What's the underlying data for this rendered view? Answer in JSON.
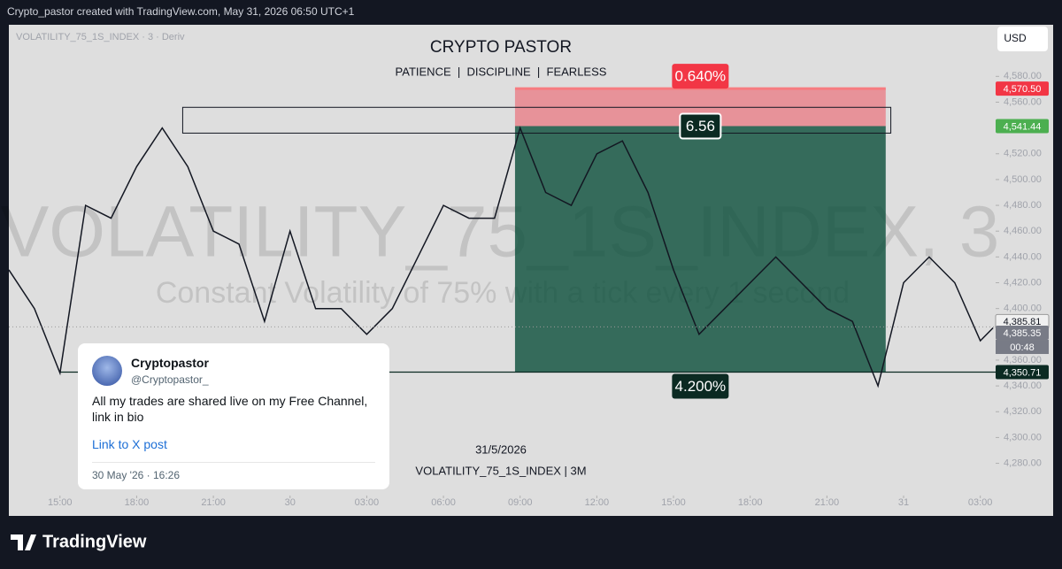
{
  "header": {
    "text": "Crypto_pastor created with TradingView.com, May 31, 2026 06:50 UTC+1"
  },
  "symbol_label": "VOLATILITY_75_1S_INDEX · 3 · Deriv",
  "currency_button": "USD",
  "watermark": {
    "title": "VOLATILITY_75_1S_INDEX, 3",
    "subtitle": "Constant Volatility of 75% with a tick every 1 second"
  },
  "chart_data": {
    "type": "line",
    "title": "CRYPTO PASTOR",
    "subtitle": "PATIENCE  |  DISCIPLINE  |  FEARLESS",
    "date_label": "31/5/2026",
    "footer_label": "VOLATILITY_75_1S_INDEX | 3M",
    "color": "#131722",
    "x": [
      -2,
      -1,
      0,
      1,
      2,
      3,
      4,
      5,
      6,
      7,
      8,
      9,
      10,
      11,
      12,
      13,
      14,
      15,
      16,
      17,
      18,
      19,
      20,
      21,
      22,
      23,
      24,
      25,
      26,
      27,
      28,
      29,
      30,
      31,
      32,
      33,
      34,
      35,
      36,
      36.5
    ],
    "values": [
      4430,
      4400,
      4350,
      4480,
      4470,
      4510,
      4540,
      4510,
      4460,
      4450,
      4390,
      4460,
      4400,
      4400,
      4380,
      4400,
      4440,
      4480,
      4470,
      4470,
      4540,
      4490,
      4480,
      4520,
      4530,
      4490,
      4430,
      4380,
      4400,
      4420,
      4440,
      4420,
      4400,
      4390,
      4340,
      4420,
      4440,
      4420,
      4375,
      4385
    ],
    "xlim": [
      -2,
      36.6
    ],
    "ylim": [
      4255,
      4620
    ],
    "xticks": [
      {
        "value": 0,
        "label": "15:00"
      },
      {
        "value": 3,
        "label": "18:00"
      },
      {
        "value": 6,
        "label": "21:00"
      },
      {
        "value": 9,
        "label": "30"
      },
      {
        "value": 12,
        "label": "03:00"
      },
      {
        "value": 15,
        "label": "06:00"
      },
      {
        "value": 18,
        "label": "09:00"
      },
      {
        "value": 21,
        "label": "12:00"
      },
      {
        "value": 24,
        "label": "15:00"
      },
      {
        "value": 27,
        "label": "18:00"
      },
      {
        "value": 30,
        "label": "21:00"
      },
      {
        "value": 33,
        "label": "31"
      },
      {
        "value": 36,
        "label": "03:00"
      }
    ],
    "yticks": [
      {
        "value": 4280,
        "label": "4,280.00"
      },
      {
        "value": 4300,
        "label": "4,300.00"
      },
      {
        "value": 4320,
        "label": "4,320.00"
      },
      {
        "value": 4340,
        "label": "4,340.00"
      },
      {
        "value": 4360,
        "label": "4,360.00"
      },
      {
        "value": 4380,
        "label": "4,380.00"
      },
      {
        "value": 4400,
        "label": "4,400.00"
      },
      {
        "value": 4420,
        "label": "4,420.00"
      },
      {
        "value": 4440,
        "label": "4,440.00"
      },
      {
        "value": 4460,
        "label": "4,460.00"
      },
      {
        "value": 4480,
        "label": "4,480.00"
      },
      {
        "value": 4500,
        "label": "4,500.00"
      },
      {
        "value": 4520,
        "label": "4,520.00"
      },
      {
        "value": 4540,
        "label": "4,540.00"
      },
      {
        "value": 4560,
        "label": "4,560.00"
      },
      {
        "value": 4580,
        "label": "4,580.00"
      }
    ],
    "position": {
      "x": [
        17.8,
        32.3
      ],
      "stop": 4570.5,
      "entry": 4541.44,
      "target": 4350.71,
      "stop_label": "0.640%",
      "ratio_label": "6.56",
      "target_label": "4.200%"
    },
    "rectangle": {
      "x": [
        4.8,
        32.5
      ],
      "y": [
        4536,
        4556
      ]
    },
    "price_labels": [
      {
        "value": 4570.5,
        "label": "4,570.50",
        "color": "#f23645"
      },
      {
        "value": 4541.44,
        "label": "4,541.44",
        "color": "#4caf50"
      },
      {
        "value": 4385.81,
        "label": "4,385.81",
        "color": "#f0f0f0"
      },
      {
        "value": 4385.35,
        "label": "4,385.35",
        "color": "#787b86"
      },
      {
        "value": 4350.71,
        "label": "4,350.71",
        "color": "#0b2a22"
      }
    ],
    "countdown": "00:48"
  },
  "tweet": {
    "name": "Cryptopastor",
    "handle": "@Cryptopastor_",
    "text": "All my trades are shared live on my Free Channel, link in bio",
    "link": "Link to X post",
    "date": "30 May '26 · 16:26"
  },
  "footer": {
    "brand": "TradingView"
  }
}
